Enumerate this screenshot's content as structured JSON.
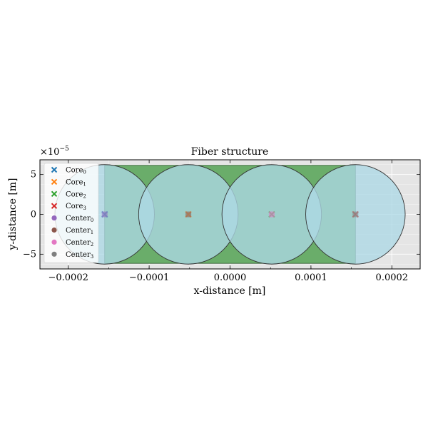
{
  "chart_data": {
    "type": "scatter",
    "title": "Fiber structure",
    "xlabel": "x-distance [m]",
    "ylabel": "y-distance [m]",
    "y_offset_label": "×10",
    "y_offset_exponent": "−5",
    "xlim": [
      -0.000235,
      0.000235
    ],
    "ylim": [
      -6.85e-05,
      6.85e-05
    ],
    "y_offset_scale": 1e-05,
    "grid": true,
    "legend_placement": "top-left",
    "x_ticks": [
      {
        "value": -0.0002,
        "label": "−0.0002"
      },
      {
        "value": -0.0001,
        "label": "−0.0001"
      },
      {
        "value": 0.0,
        "label": "0.0000"
      },
      {
        "value": 0.0001,
        "label": "0.0001"
      },
      {
        "value": 0.0002,
        "label": "0.0002"
      }
    ],
    "y_ticks": [
      {
        "value": 5e-05,
        "label": "5"
      },
      {
        "value": 0.0,
        "label": "0"
      },
      {
        "value": -5e-05,
        "label": "−5"
      }
    ],
    "background_rect": {
      "x": [
        -0.000235,
        0.000235
      ],
      "y": [
        -6.85e-05,
        6.85e-05
      ]
    },
    "clad_band": {
      "x": [
        -0.000155,
        0.000155
      ],
      "y": [
        -6.15e-05,
        6.15e-05
      ]
    },
    "circles": [
      {
        "cx": -0.000155,
        "cy": 0.0,
        "r": 6.15e-05
      },
      {
        "cx": -5.15e-05,
        "cy": 0.0,
        "r": 6.15e-05
      },
      {
        "cx": 5.15e-05,
        "cy": 0.0,
        "r": 6.15e-05
      },
      {
        "cx": 0.000155,
        "cy": 0.0,
        "r": 6.15e-05
      }
    ],
    "series": [
      {
        "name": "Core",
        "sub": "0",
        "marker": "x",
        "color": "#1f77b4",
        "points": [
          [
            -0.000155,
            0.0
          ]
        ]
      },
      {
        "name": "Core",
        "sub": "1",
        "marker": "x",
        "color": "#ff7f0e",
        "points": [
          [
            -5.15e-05,
            0.0
          ]
        ]
      },
      {
        "name": "Core",
        "sub": "2",
        "marker": "x",
        "color": "#2ca02c",
        "points": [
          [
            5.15e-05,
            0.0
          ]
        ]
      },
      {
        "name": "Core",
        "sub": "3",
        "marker": "x",
        "color": "#d62728",
        "points": [
          [
            0.000155,
            0.0
          ]
        ]
      },
      {
        "name": "Center",
        "sub": "0",
        "marker": "o",
        "color": "#9467bd",
        "points": [
          [
            -0.000155,
            0.0
          ]
        ]
      },
      {
        "name": "Center",
        "sub": "1",
        "marker": "o",
        "color": "#8c564b",
        "points": [
          [
            -5.15e-05,
            0.0
          ]
        ]
      },
      {
        "name": "Center",
        "sub": "2",
        "marker": "o",
        "color": "#e377c2",
        "points": [
          [
            5.15e-05,
            0.0
          ]
        ]
      },
      {
        "name": "Center",
        "sub": "3",
        "marker": "o",
        "color": "#7f7f7f",
        "points": [
          [
            0.000155,
            0.0
          ]
        ]
      }
    ],
    "colors": {
      "background": "#e5e5e5",
      "clad": "#6aad6a",
      "core_fill": "#add8e6",
      "grid": "#ffffff",
      "axis": "#000000"
    }
  }
}
